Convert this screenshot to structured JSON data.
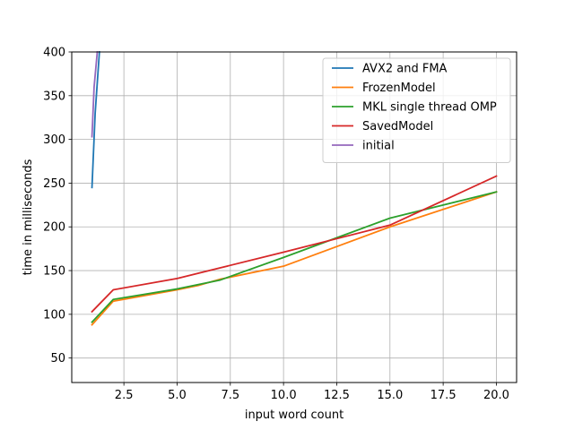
{
  "chart_data": {
    "type": "line",
    "title": "",
    "xlabel": "input word count",
    "ylabel": "time in milliseconds",
    "xlim": [
      0.05,
      20.95
    ],
    "ylim": [
      22,
      400
    ],
    "grid": true,
    "legend_position": "top-right",
    "x_ticks": [
      2.5,
      5.0,
      7.5,
      10.0,
      12.5,
      15.0,
      17.5,
      20.0
    ],
    "x_tick_labels": [
      "2.5",
      "5.0",
      "7.5",
      "10.0",
      "12.5",
      "15.0",
      "17.5",
      "20.0"
    ],
    "y_ticks": [
      50,
      100,
      150,
      200,
      250,
      300,
      350,
      400
    ],
    "y_tick_labels": [
      "50",
      "100",
      "150",
      "200",
      "250",
      "300",
      "350",
      "400"
    ],
    "series": [
      {
        "name": "AVX2 and FMA",
        "color": "#1f77b4",
        "x": [
          1,
          1.15,
          1.35
        ],
        "y": [
          245,
          330,
          400
        ]
      },
      {
        "name": "FrozenModel",
        "color": "#ff7f0e",
        "x": [
          1,
          2,
          5,
          6,
          7,
          10,
          15,
          20
        ],
        "y": [
          88,
          115,
          128,
          133,
          140,
          155,
          200,
          240
        ]
      },
      {
        "name": "MKL single thread OMP",
        "color": "#2ca02c",
        "x": [
          1,
          2,
          5,
          6,
          7,
          10,
          15,
          20
        ],
        "y": [
          91,
          117,
          129,
          134,
          139,
          165,
          210,
          240
        ]
      },
      {
        "name": "SavedModel",
        "color": "#d62728",
        "x": [
          1,
          2,
          5,
          6,
          7,
          10,
          15,
          20
        ],
        "y": [
          103,
          128,
          141,
          147,
          153,
          171,
          202,
          258
        ]
      },
      {
        "name": "initial",
        "color": "#9467bd",
        "x": [
          1,
          1.1,
          1.25
        ],
        "y": [
          303,
          360,
          400
        ]
      }
    ]
  }
}
